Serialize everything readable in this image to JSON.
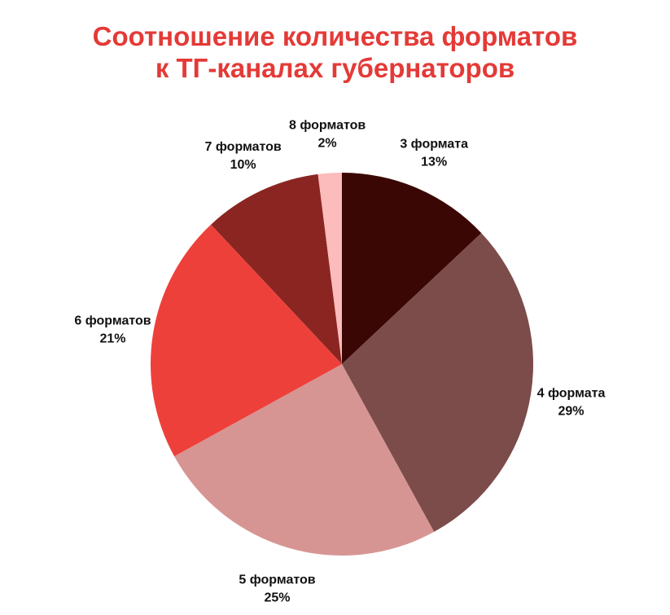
{
  "title_line1": "Соотношение количества форматов",
  "title_line2": "к ТГ-каналах губернаторов",
  "colors": {
    "title": "#e43a37",
    "label": "#111111"
  },
  "chart_data": {
    "type": "pie",
    "title": "Соотношение количества форматов к ТГ-каналах губернаторов",
    "start": "top",
    "direction": "clockwise",
    "slices": [
      {
        "label": "3 формата",
        "value": 13,
        "value_label": "13%",
        "color": "#3b0705"
      },
      {
        "label": "4 формата",
        "value": 29,
        "value_label": "29%",
        "color": "#7b4c4a"
      },
      {
        "label": "5 форматов",
        "value": 25,
        "value_label": "25%",
        "color": "#d69593"
      },
      {
        "label": "6 форматов",
        "value": 21,
        "value_label": "21%",
        "color": "#ee403a"
      },
      {
        "label": "7 форматов",
        "value": 10,
        "value_label": "10%",
        "color": "#8b2521"
      },
      {
        "label": "8 форматов",
        "value": 2,
        "value_label": "2%",
        "color": "#fbbcbb"
      }
    ]
  }
}
